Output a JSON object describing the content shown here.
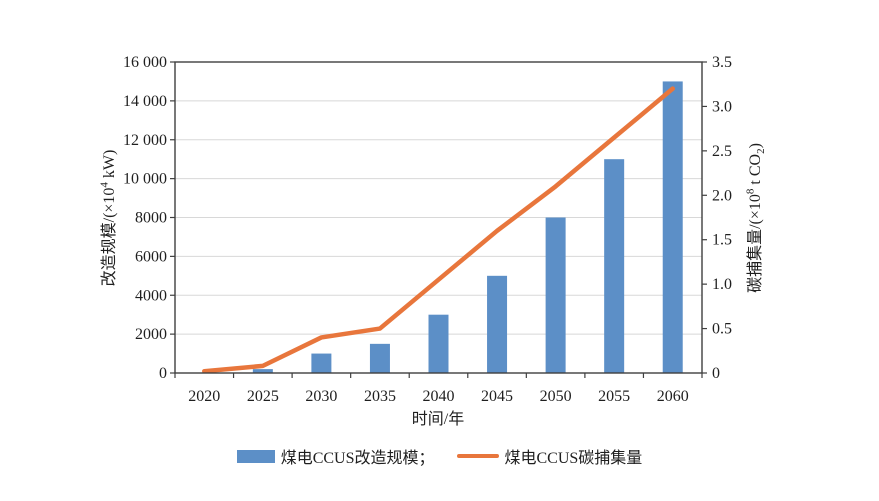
{
  "chart_data": {
    "type": "combo-bar-line",
    "title": "",
    "xlabel": "时间/年",
    "categories": [
      "2020",
      "2025",
      "2030",
      "2035",
      "2040",
      "2045",
      "2050",
      "2055",
      "2060"
    ],
    "series": [
      {
        "name": "煤电CCUS改造规模",
        "type": "bar",
        "axis": "left",
        "values": [
          0,
          200,
          1000,
          1500,
          3000,
          5000,
          8000,
          11000,
          15000
        ]
      },
      {
        "name": "煤电CCUS碳捕集量",
        "type": "line",
        "axis": "right",
        "values": [
          0.02,
          0.08,
          0.4,
          0.5,
          1.05,
          1.6,
          2.1,
          2.65,
          3.2
        ]
      }
    ],
    "axes": {
      "left_min": 0,
      "left_max": 16000,
      "right_min": 0,
      "right_max": 3.5,
      "grid": true,
      "legend_position": "bottom",
      "left_title": {
        "pre": "改造规模/(×10",
        "sup": "4",
        "post": " kW)"
      },
      "right_title": {
        "pre": "碳捕集量/(×10",
        "sup": "8",
        "mid": " t CO",
        "sub": "2",
        "post": ")"
      },
      "left_ticks": [
        {
          "v": 0,
          "label": "0"
        },
        {
          "v": 2000,
          "label": "2000"
        },
        {
          "v": 4000,
          "label": "4000"
        },
        {
          "v": 6000,
          "label": "6000"
        },
        {
          "v": 8000,
          "label": "8000"
        },
        {
          "v": 10000,
          "label": "10 000"
        },
        {
          "v": 12000,
          "label": "12 000"
        },
        {
          "v": 14000,
          "label": "14 000"
        },
        {
          "v": 16000,
          "label": "16 000"
        }
      ],
      "right_ticks": [
        {
          "v": 0,
          "label": "0"
        },
        {
          "v": 0.5,
          "label": "0.5"
        },
        {
          "v": 1,
          "label": "1.0"
        },
        {
          "v": 1.5,
          "label": "1.5"
        },
        {
          "v": 2,
          "label": "2.0"
        },
        {
          "v": 2.5,
          "label": "2.5"
        },
        {
          "v": 3,
          "label": "3.0"
        },
        {
          "v": 3.5,
          "label": "3.5"
        }
      ]
    },
    "legend": {
      "bar_label": "煤电CCUS改造规模；",
      "line_label": "煤电CCUS碳捕集量"
    },
    "colors": {
      "bar": "#5C8FC7",
      "line": "#E8763C",
      "grid": "#D8D8D8",
      "axis": "#3F3F3F",
      "text": "#1F1F1F",
      "background": "#FFFFFF"
    }
  }
}
